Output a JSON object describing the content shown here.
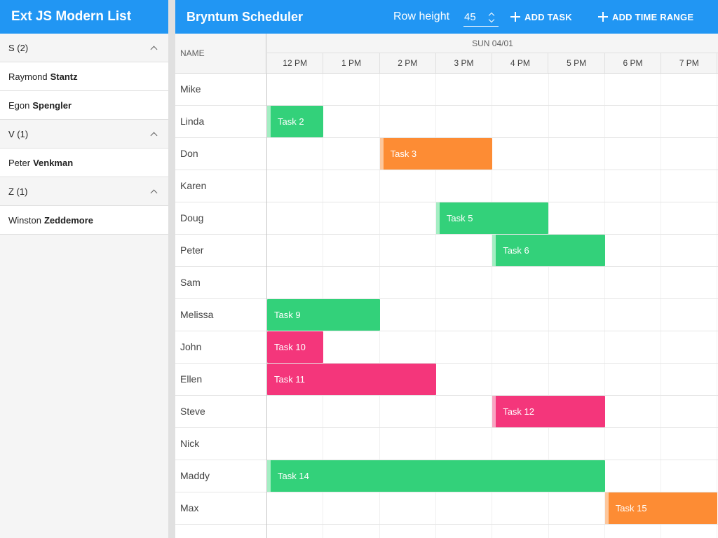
{
  "left_panel": {
    "title": "Ext JS Modern List",
    "groups": [
      {
        "label": "S (2)",
        "people": [
          {
            "first": "Raymond",
            "last": "Stantz"
          },
          {
            "first": "Egon",
            "last": "Spengler"
          }
        ]
      },
      {
        "label": "V (1)",
        "people": [
          {
            "first": "Peter",
            "last": "Venkman"
          }
        ]
      },
      {
        "label": "Z (1)",
        "people": [
          {
            "first": "Winston",
            "last": "Zeddemore"
          }
        ]
      }
    ]
  },
  "scheduler": {
    "title": "Bryntum Scheduler",
    "row_height_label": "Row height",
    "row_height_value": "45",
    "add_task_label": "ADD TASK",
    "add_time_range_label": "ADD TIME RANGE",
    "name_column_header": "NAME",
    "date_header": "SUN 04/01",
    "hours": [
      "12 PM",
      "1 PM",
      "2 PM",
      "3 PM",
      "4 PM",
      "5 PM",
      "6 PM",
      "7 PM"
    ],
    "resources": [
      "Mike",
      "Linda",
      "Don",
      "Karen",
      "Doug",
      "Peter",
      "Sam",
      "Melissa",
      "John",
      "Ellen",
      "Steve",
      "Nick",
      "Maddy",
      "Max"
    ],
    "events": [
      {
        "name": "Task 2",
        "row": 1,
        "start": 0.0,
        "end": 1.0,
        "color": "green",
        "bar": true
      },
      {
        "name": "Task 3",
        "row": 2,
        "start": 2.0,
        "end": 4.0,
        "color": "orange",
        "bar": true
      },
      {
        "name": "Task 5",
        "row": 4,
        "start": 3.0,
        "end": 5.0,
        "color": "green",
        "bar": true
      },
      {
        "name": "Task 6",
        "row": 5,
        "start": 4.0,
        "end": 6.0,
        "color": "green",
        "bar": true
      },
      {
        "name": "Task 9",
        "row": 7,
        "start": 0.0,
        "end": 2.0,
        "color": "green",
        "bar": false
      },
      {
        "name": "Task 10",
        "row": 8,
        "start": 0.0,
        "end": 1.0,
        "color": "pink",
        "bar": false
      },
      {
        "name": "Task 11",
        "row": 9,
        "start": 0.0,
        "end": 3.0,
        "color": "pink",
        "bar": false
      },
      {
        "name": "Task 12",
        "row": 10,
        "start": 4.0,
        "end": 6.0,
        "color": "pink",
        "bar": true
      },
      {
        "name": "Task 14",
        "row": 12,
        "start": 0.0,
        "end": 6.0,
        "color": "green",
        "bar": true
      },
      {
        "name": "Task 15",
        "row": 13,
        "start": 6.0,
        "end": 8.0,
        "color": "orange",
        "bar": true
      }
    ],
    "colors": {
      "header": "#2196f3",
      "green": "#33d17a",
      "orange": "#fd8c34",
      "pink": "#f4367b"
    }
  }
}
